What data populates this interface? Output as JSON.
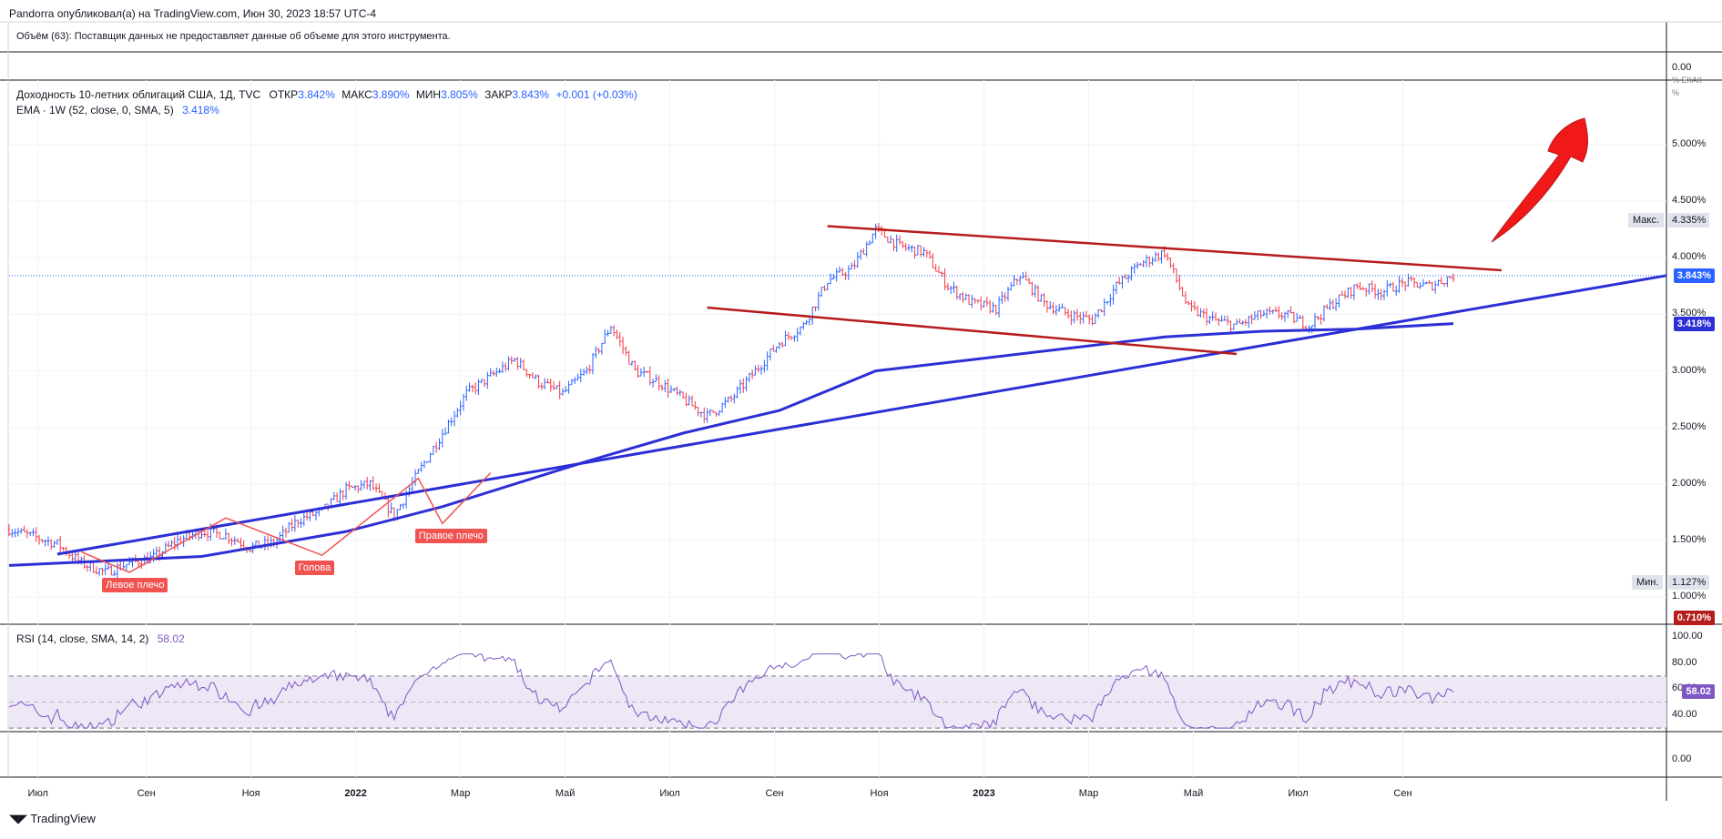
{
  "header": {
    "publisher": "Pandorra опубликовал(а) на TradingView.com, Июн 30, 2023 18:57 UTC-4",
    "volume_note": "Объём (63): Поставщик данных не предоставляет данные об объеме для этого инструмента.",
    "volume_axis_value": "0.00"
  },
  "legend": {
    "symbol": "Доходность 10-летних облигаций США, 1Д, TVC",
    "open_label": "ОТКР",
    "open_value": "3.842%",
    "high_label": "МАКС",
    "high_value": "3.890%",
    "low_label": "МИН",
    "low_value": "3.805%",
    "close_label": "ЗАКР",
    "close_value": "3.843%",
    "change": "+0.001 (+0.03%)",
    "ema_label": "EMA · 1W (52, close, 0, SMA, 5)",
    "ema_value": "3.418%"
  },
  "rsi_legend": {
    "label": "RSI (14, close, SMA, 14, 2)",
    "value": "58.02"
  },
  "axis_header": "% ЕКАК",
  "axis_unit": "%",
  "footer": {
    "brand": "TradingView"
  },
  "colors": {
    "up": "#2962ff",
    "down": "#f23645",
    "trend_blue": "#2c2fd6",
    "channel_red": "#b71c1c",
    "rsi": "#7e57c2",
    "rsi_band": "#ede7f6"
  },
  "chart_data": {
    "type": "candlestick",
    "title": "Доходность 10-летних облигаций США, 1Д, TVC",
    "price_axis": [
      "5.000%",
      "4.500%",
      "4.000%",
      "3.500%",
      "3.000%",
      "2.500%",
      "2.000%",
      "1.500%",
      "1.000%"
    ],
    "ylim": [
      0.6,
      5.5
    ],
    "time_axis": [
      "Июл",
      "Сен",
      "Ноя",
      "2022",
      "Мар",
      "Май",
      "Июл",
      "Сен",
      "Ноя",
      "2023",
      "Мар",
      "Май",
      "Июл",
      "Сен"
    ],
    "current_price": "3.843%",
    "ema_current": "3.418%",
    "max": {
      "label": "Макс.",
      "value": "4.335%"
    },
    "min": {
      "label": "Мин.",
      "value": "1.127%"
    },
    "bottom_tag": "0.710%",
    "close_path": [
      [
        0,
        1.6
      ],
      [
        2,
        1.47
      ],
      [
        3,
        1.3
      ],
      [
        4,
        1.22
      ],
      [
        5,
        1.3
      ],
      [
        6,
        1.35
      ],
      [
        7,
        1.5
      ],
      [
        8,
        1.58
      ],
      [
        9,
        1.55
      ],
      [
        10,
        1.44
      ],
      [
        11,
        1.48
      ],
      [
        12,
        1.68
      ],
      [
        13,
        1.76
      ],
      [
        14,
        1.95
      ],
      [
        15,
        2.0
      ],
      [
        16,
        1.72
      ],
      [
        17,
        2.1
      ],
      [
        18,
        2.45
      ],
      [
        19,
        2.8
      ],
      [
        20,
        2.95
      ],
      [
        21,
        3.1
      ],
      [
        22,
        2.9
      ],
      [
        23,
        2.8
      ],
      [
        24,
        3.0
      ],
      [
        25,
        3.4
      ],
      [
        26,
        3.0
      ],
      [
        27,
        2.9
      ],
      [
        28,
        2.75
      ],
      [
        29,
        2.6
      ],
      [
        30,
        2.75
      ],
      [
        31,
        3.0
      ],
      [
        32,
        3.25
      ],
      [
        33,
        3.4
      ],
      [
        34,
        3.8
      ],
      [
        35,
        3.9
      ],
      [
        36,
        4.25
      ],
      [
        37,
        4.1
      ],
      [
        38,
        4.05
      ],
      [
        39,
        3.75
      ],
      [
        40,
        3.6
      ],
      [
        41,
        3.55
      ],
      [
        42,
        3.85
      ],
      [
        43,
        3.6
      ],
      [
        44,
        3.5
      ],
      [
        45,
        3.45
      ],
      [
        46,
        3.75
      ],
      [
        47,
        3.95
      ],
      [
        48,
        4.05
      ],
      [
        49,
        3.55
      ],
      [
        50,
        3.45
      ],
      [
        51,
        3.4
      ],
      [
        52,
        3.5
      ],
      [
        53,
        3.5
      ],
      [
        54,
        3.4
      ],
      [
        55,
        3.6
      ],
      [
        56,
        3.75
      ],
      [
        57,
        3.7
      ],
      [
        58,
        3.78
      ],
      [
        59,
        3.75
      ],
      [
        60,
        3.843
      ]
    ],
    "ema_path": [
      [
        0,
        1.28
      ],
      [
        8,
        1.36
      ],
      [
        14,
        1.58
      ],
      [
        18,
        1.8
      ],
      [
        24,
        2.2
      ],
      [
        28,
        2.45
      ],
      [
        32,
        2.65
      ],
      [
        36,
        3.0
      ],
      [
        40,
        3.1
      ],
      [
        44,
        3.2
      ],
      [
        48,
        3.3
      ],
      [
        52,
        3.35
      ],
      [
        56,
        3.37
      ],
      [
        60,
        3.418
      ]
    ],
    "trendline_blue": [
      [
        2,
        1.38
      ],
      [
        68,
        3.843
      ]
    ],
    "channel_upper": [
      [
        34,
        4.28
      ],
      [
        62,
        3.89
      ]
    ],
    "channel_lower": [
      [
        29,
        3.56
      ],
      [
        51,
        3.15
      ]
    ],
    "hs_pattern": [
      [
        3,
        1.4
      ],
      [
        5,
        1.22
      ],
      [
        9,
        1.7
      ],
      [
        13,
        1.37
      ],
      [
        17,
        2.05
      ],
      [
        18,
        1.65
      ],
      [
        20,
        2.1
      ]
    ],
    "annotations": [
      {
        "text": "Левое плечо",
        "at": [
          5,
          1.22
        ]
      },
      {
        "text": "Голова",
        "at": [
          13,
          1.37
        ]
      },
      {
        "text": "Правое плечо",
        "at": [
          18,
          1.65
        ]
      }
    ],
    "rsi": {
      "axis": [
        "100.00",
        "80.00",
        "60.00",
        "40.00"
      ],
      "ylim": [
        25,
        100
      ],
      "upper_band": 70,
      "lower_band": 30,
      "mid": 50,
      "current": "58.02"
    },
    "grid": true
  }
}
